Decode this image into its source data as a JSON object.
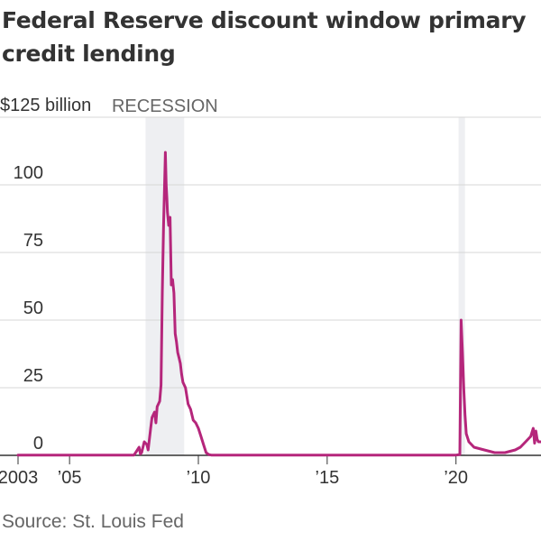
{
  "title": "Federal Reserve discount window primary credit lending",
  "source": "Source: St. Louis Fed",
  "colors": {
    "line": "#b5267b",
    "recession": "#eeeff2",
    "grid": "#d7d7d7",
    "axis": "#333333"
  },
  "chart_data": {
    "type": "line",
    "title": "Federal Reserve discount window primary credit lending",
    "xlabel": "",
    "ylabel": "",
    "xlim": [
      2003,
      2023.3
    ],
    "ylim": [
      0,
      125
    ],
    "y_ticks": [
      0,
      25,
      50,
      75,
      100,
      125
    ],
    "y_tick_labels": [
      "0",
      "25",
      "50",
      "75",
      "100",
      "$125 billion"
    ],
    "x_ticks": [
      2003,
      2005,
      2010,
      2015,
      2020
    ],
    "x_tick_labels": [
      "2003",
      "’05",
      "’10",
      "’15",
      "’20"
    ],
    "grid": true,
    "recessions": [
      {
        "label": "RECESSION",
        "start": 2007.95,
        "end": 2009.45
      },
      {
        "label": "",
        "start": 2020.1,
        "end": 2020.35
      }
    ],
    "series": [
      {
        "x": [
          2003.0,
          2004.0,
          2005.0,
          2006.0,
          2007.0,
          2007.5,
          2007.6,
          2007.7,
          2007.75,
          2007.8,
          2007.9,
          2008.0,
          2008.05,
          2008.15,
          2008.2,
          2008.3,
          2008.35,
          2008.4,
          2008.5,
          2008.55,
          2008.6,
          2008.65,
          2008.7,
          2008.72,
          2008.75,
          2008.78,
          2008.8,
          2008.85,
          2008.9,
          2008.95,
          2009.0,
          2009.05,
          2009.1,
          2009.15,
          2009.2,
          2009.25,
          2009.3,
          2009.35,
          2009.4,
          2009.5,
          2009.6,
          2009.7,
          2009.8,
          2009.9,
          2010.0,
          2010.1,
          2010.2,
          2010.3,
          2010.4,
          2010.5,
          2010.6,
          2011.0,
          2012.0,
          2013.0,
          2014.0,
          2015.0,
          2016.0,
          2017.0,
          2018.0,
          2019.0,
          2020.0,
          2020.15,
          2020.2,
          2020.25,
          2020.3,
          2020.35,
          2020.4,
          2020.5,
          2020.6,
          2020.7,
          2020.9,
          2021.1,
          2021.3,
          2021.5,
          2021.7,
          2021.9,
          2022.1,
          2022.3,
          2022.5,
          2022.7,
          2022.9,
          2023.0,
          2023.05,
          2023.1,
          2023.15,
          2023.2,
          2023.3
        ],
        "y": [
          0.1,
          0.1,
          0.1,
          0.1,
          0.1,
          0.1,
          1.5,
          3,
          0.5,
          1,
          5,
          4,
          2,
          10,
          14,
          16,
          12,
          18,
          20,
          26,
          60,
          85,
          105,
          112,
          100,
          95,
          90,
          85,
          88,
          63,
          65,
          60,
          45,
          42,
          38,
          36,
          34,
          30,
          27,
          25,
          19,
          17,
          13,
          12,
          10,
          7,
          4,
          1,
          0.3,
          0.1,
          0.1,
          0.1,
          0.1,
          0.1,
          0.1,
          0.1,
          0.1,
          0.1,
          0.1,
          0.1,
          0.1,
          0.3,
          50,
          38,
          25,
          15,
          8,
          5,
          4,
          3,
          2.5,
          2,
          1.5,
          1,
          1,
          1,
          1.5,
          2,
          3,
          5,
          7,
          10,
          4.5,
          9,
          6,
          5,
          5
        ]
      }
    ]
  }
}
